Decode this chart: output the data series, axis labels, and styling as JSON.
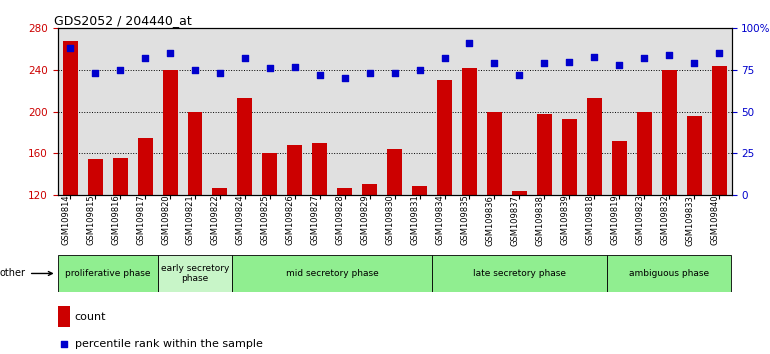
{
  "title": "GDS2052 / 204440_at",
  "samples": [
    "GSM109814",
    "GSM109815",
    "GSM109816",
    "GSM109817",
    "GSM109820",
    "GSM109821",
    "GSM109822",
    "GSM109824",
    "GSM109825",
    "GSM109826",
    "GSM109827",
    "GSM109828",
    "GSM109829",
    "GSM109830",
    "GSM109831",
    "GSM109834",
    "GSM109835",
    "GSM109836",
    "GSM109837",
    "GSM109838",
    "GSM109839",
    "GSM109818",
    "GSM109819",
    "GSM109823",
    "GSM109832",
    "GSM109833",
    "GSM109840"
  ],
  "counts": [
    268,
    154,
    155,
    175,
    240,
    200,
    126,
    213,
    160,
    168,
    170,
    126,
    130,
    164,
    128,
    230,
    242,
    200,
    124,
    198,
    193,
    213,
    172,
    200,
    240,
    196,
    244
  ],
  "percentiles": [
    88,
    73,
    75,
    82,
    85,
    75,
    73,
    82,
    76,
    77,
    72,
    70,
    73,
    73,
    75,
    82,
    91,
    79,
    72,
    79,
    80,
    83,
    78,
    82,
    84,
    79,
    85
  ],
  "bar_color": "#cc0000",
  "dot_color": "#0000cc",
  "ylim_left": [
    120,
    280
  ],
  "ylim_right": [
    0,
    100
  ],
  "yticks_left": [
    120,
    160,
    200,
    240,
    280
  ],
  "yticks_right": [
    0,
    25,
    50,
    75,
    100
  ],
  "ytick_labels_right": [
    "0",
    "25",
    "50",
    "75",
    "100%"
  ],
  "phases": [
    {
      "label": "proliferative phase",
      "start": 0,
      "end": 4,
      "color": "#90EE90"
    },
    {
      "label": "early secretory\nphase",
      "start": 4,
      "end": 7,
      "color": "#c8f5c8"
    },
    {
      "label": "mid secretory phase",
      "start": 7,
      "end": 15,
      "color": "#90EE90"
    },
    {
      "label": "late secretory phase",
      "start": 15,
      "end": 22,
      "color": "#90EE90"
    },
    {
      "label": "ambiguous phase",
      "start": 22,
      "end": 27,
      "color": "#90EE90"
    }
  ],
  "legend_count_label": "count",
  "legend_pct_label": "percentile rank within the sample",
  "other_label": "other"
}
